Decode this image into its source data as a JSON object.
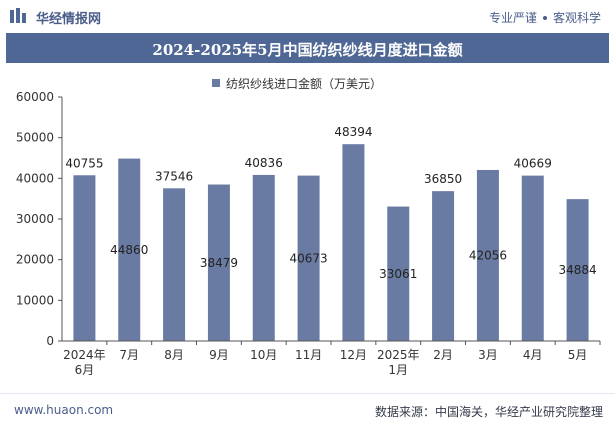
{
  "header": {
    "brand": "华经情报网",
    "tag1": "专业严谨",
    "tag2": "客观科学"
  },
  "footer": {
    "website": "www.huaon.com",
    "source": "数据来源：中国海关，华经产业研究院整理"
  },
  "chart_data": {
    "type": "bar",
    "title": "2024-2025年5月中国纺织纱线月度进口金额",
    "categories": [
      "2024年6月",
      "7月",
      "8月",
      "9月",
      "10月",
      "11月",
      "12月",
      "2025年1月",
      "2月",
      "3月",
      "4月",
      "5月"
    ],
    "series": [
      {
        "name": "纺织纱线进口金额（万美元）",
        "values": [
          40755,
          44860,
          37546,
          38479,
          40836,
          40673,
          48394,
          33061,
          36850,
          42056,
          40669,
          34884
        ]
      }
    ],
    "ylim": [
      0,
      60000
    ],
    "yticks": [
      0,
      10000,
      20000,
      30000,
      40000,
      50000,
      60000
    ],
    "label_position": [
      "outside",
      "inside",
      "outside",
      "inside",
      "outside",
      "inside",
      "outside",
      "inside",
      "outside",
      "inside",
      "outside",
      "inside"
    ],
    "bar_color": "#6a7ba3",
    "grid": false,
    "legend": "top-center"
  }
}
